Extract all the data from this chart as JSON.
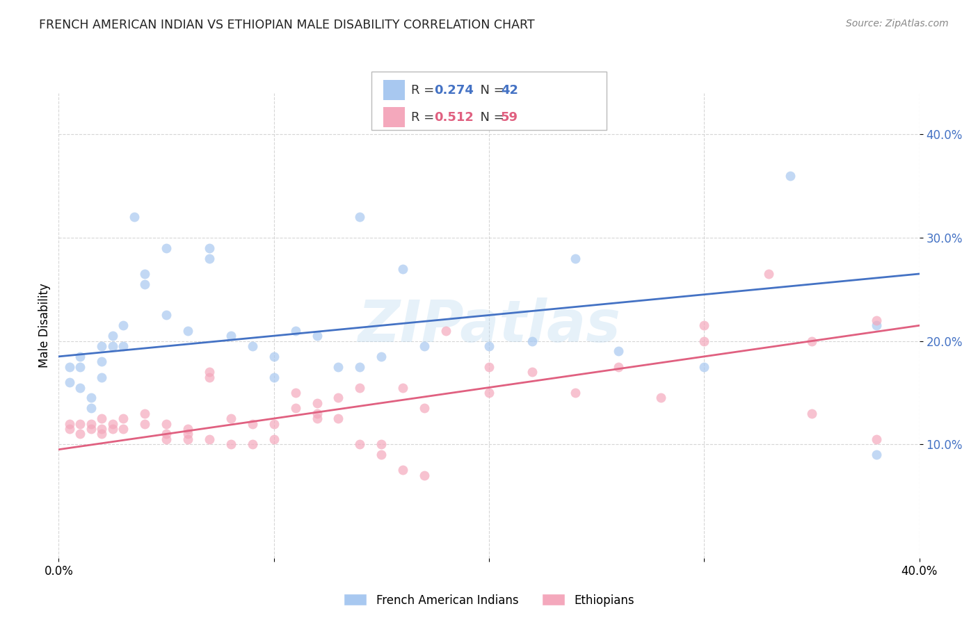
{
  "title": "FRENCH AMERICAN INDIAN VS ETHIOPIAN MALE DISABILITY CORRELATION CHART",
  "source": "Source: ZipAtlas.com",
  "ylabel": "Male Disability",
  "xlim": [
    0.0,
    0.4
  ],
  "ylim": [
    -0.01,
    0.44
  ],
  "yticks": [
    0.1,
    0.2,
    0.3,
    0.4
  ],
  "ytick_labels": [
    "10.0%",
    "20.0%",
    "30.0%",
    "40.0%"
  ],
  "xticks": [
    0.0,
    0.1,
    0.2,
    0.3,
    0.4
  ],
  "xtick_labels": [
    "0.0%",
    "",
    "",
    "",
    "40.0%"
  ],
  "blue_color": "#A8C8F0",
  "pink_color": "#F4A8BC",
  "blue_line_color": "#4472C4",
  "pink_line_color": "#E06080",
  "watermark": "ZIPatlas",
  "blue_scatter_x": [
    0.005,
    0.005,
    0.01,
    0.01,
    0.01,
    0.015,
    0.015,
    0.02,
    0.02,
    0.02,
    0.025,
    0.025,
    0.03,
    0.03,
    0.035,
    0.04,
    0.04,
    0.05,
    0.05,
    0.06,
    0.07,
    0.07,
    0.08,
    0.09,
    0.1,
    0.1,
    0.11,
    0.12,
    0.13,
    0.14,
    0.15,
    0.16,
    0.17,
    0.2,
    0.22,
    0.24,
    0.26,
    0.3,
    0.34,
    0.38,
    0.38,
    0.14
  ],
  "blue_scatter_y": [
    0.175,
    0.16,
    0.185,
    0.175,
    0.155,
    0.145,
    0.135,
    0.195,
    0.18,
    0.165,
    0.205,
    0.195,
    0.215,
    0.195,
    0.32,
    0.265,
    0.255,
    0.225,
    0.29,
    0.21,
    0.29,
    0.28,
    0.205,
    0.195,
    0.185,
    0.165,
    0.21,
    0.205,
    0.175,
    0.175,
    0.185,
    0.27,
    0.195,
    0.195,
    0.2,
    0.28,
    0.19,
    0.175,
    0.36,
    0.215,
    0.09,
    0.32
  ],
  "pink_scatter_x": [
    0.005,
    0.005,
    0.01,
    0.01,
    0.015,
    0.015,
    0.02,
    0.02,
    0.02,
    0.025,
    0.025,
    0.03,
    0.03,
    0.04,
    0.04,
    0.05,
    0.05,
    0.05,
    0.06,
    0.06,
    0.06,
    0.07,
    0.07,
    0.07,
    0.08,
    0.08,
    0.09,
    0.09,
    0.1,
    0.1,
    0.11,
    0.11,
    0.12,
    0.12,
    0.12,
    0.13,
    0.13,
    0.14,
    0.14,
    0.15,
    0.15,
    0.16,
    0.16,
    0.17,
    0.17,
    0.18,
    0.2,
    0.2,
    0.22,
    0.24,
    0.26,
    0.28,
    0.3,
    0.3,
    0.33,
    0.35,
    0.35,
    0.38,
    0.38
  ],
  "pink_scatter_y": [
    0.12,
    0.115,
    0.12,
    0.11,
    0.12,
    0.115,
    0.125,
    0.115,
    0.11,
    0.12,
    0.115,
    0.125,
    0.115,
    0.13,
    0.12,
    0.12,
    0.11,
    0.105,
    0.115,
    0.11,
    0.105,
    0.17,
    0.165,
    0.105,
    0.125,
    0.1,
    0.12,
    0.1,
    0.12,
    0.105,
    0.15,
    0.135,
    0.14,
    0.13,
    0.125,
    0.145,
    0.125,
    0.155,
    0.1,
    0.1,
    0.09,
    0.075,
    0.155,
    0.135,
    0.07,
    0.21,
    0.15,
    0.175,
    0.17,
    0.15,
    0.175,
    0.145,
    0.2,
    0.215,
    0.265,
    0.13,
    0.2,
    0.22,
    0.105
  ],
  "blue_line_x": [
    0.0,
    0.4
  ],
  "blue_line_y": [
    0.185,
    0.265
  ],
  "pink_line_x": [
    0.0,
    0.4
  ],
  "pink_line_y": [
    0.095,
    0.215
  ]
}
